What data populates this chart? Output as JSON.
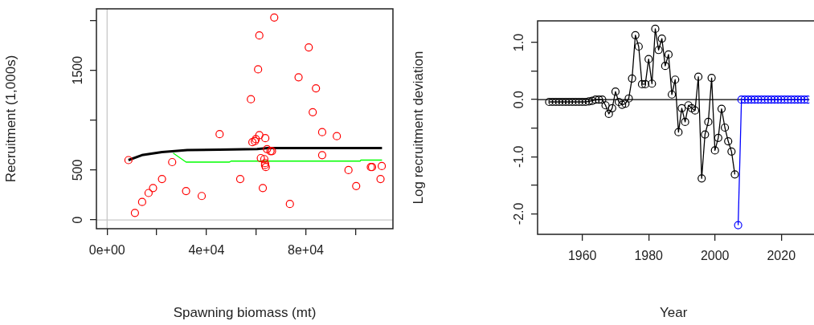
{
  "chart_data": [
    {
      "type": "scatter",
      "xlabel": "Spawning biomass (mt)",
      "ylabel": "Recruitment (1,000s)",
      "xlim": [
        -4300,
        115100
      ],
      "ylim": [
        -88,
        2117
      ],
      "xticks": [
        {
          "value": 0,
          "label": "0e+00"
        },
        {
          "value": 20000,
          "label": null
        },
        {
          "value": 40000,
          "label": "4e+04"
        },
        {
          "value": 60000,
          "label": null
        },
        {
          "value": 80000,
          "label": "8e+04"
        },
        {
          "value": 100000,
          "label": null
        }
      ],
      "yticks": [
        0,
        500,
        {
          "value": 1000,
          "label": null
        },
        1500,
        {
          "value": 2000,
          "label": null
        }
      ],
      "ref_lines": [
        {
          "axis": "x",
          "value": 0,
          "color": "#c8c8c8"
        },
        {
          "axis": "y",
          "value": 0,
          "color": "#c8c8c8"
        }
      ],
      "marker": "circle",
      "series": [
        {
          "color": "#ff0000",
          "x": [
            8600,
            11200,
            14100,
            16700,
            18500,
            22100,
            26200,
            31800,
            38100,
            45300,
            53600,
            57900,
            58500,
            59500,
            59900,
            60800,
            61300,
            61300,
            61900,
            62700,
            63300,
            63600,
            63600,
            63700,
            63900,
            67300,
            73600,
            77100,
            81200,
            82800,
            84100,
            86600,
            86600,
            92500,
            97200,
            100300,
            106200,
            106700,
            110100,
            110600
          ],
          "values": [
            600,
            70,
            180,
            270,
            320,
            410,
            580,
            290,
            240,
            860,
            410,
            1210,
            780,
            790,
            810,
            1510,
            1850,
            850,
            620,
            320,
            610,
            570,
            550,
            820,
            530,
            2030,
            160,
            1430,
            1730,
            1080,
            1320,
            880,
            650,
            840,
            500,
            340,
            530,
            530,
            410,
            540
          ]
        },
        {
          "color": "#ff0000",
          "x": [
            64400,
            65800,
            66400
          ],
          "values": [
            710,
            690,
            690
          ]
        },
        {
          "type": "line",
          "color": "#000000",
          "marker": "none",
          "x": [
            8600,
            14000,
            22100,
            32300,
            45300,
            60400,
            64700,
            110700
          ],
          "values": [
            600,
            650,
            680,
            700,
            705,
            710,
            720,
            720
          ]
        },
        {
          "type": "line",
          "color": "#00ff00",
          "marker": "none",
          "x": [
            26600,
            31800,
            49300,
            49900,
            101900,
            102200,
            110700
          ],
          "values": [
            670,
            580,
            580,
            590,
            590,
            600,
            600
          ]
        }
      ]
    },
    {
      "type": "line",
      "xlabel": "Year",
      "ylabel": "Log recruitment deviation",
      "xlim": [
        1946.5,
        2028.5
      ],
      "ylim": [
        -2.36,
        1.38
      ],
      "xticks": [
        1960,
        1980,
        2000,
        2020
      ],
      "yticks": [
        {
          "value": -2,
          "label": "-2.0"
        },
        {
          "value": -1.5,
          "label": null
        },
        {
          "value": -1,
          "label": "-1.0"
        },
        {
          "value": -0.5,
          "label": null
        },
        {
          "value": 0,
          "label": "0.0"
        },
        {
          "value": 0.5,
          "label": null
        },
        {
          "value": 1,
          "label": "1.0"
        }
      ],
      "ref_lines": [
        {
          "axis": "y",
          "value": 0,
          "color": "#000000"
        }
      ],
      "marker": "circle",
      "series": [
        {
          "color": "#000000",
          "x": [
            1950,
            1951,
            1952,
            1953,
            1954,
            1955,
            1956,
            1957,
            1958,
            1959,
            1960,
            1961,
            1962,
            1963,
            1964,
            1965,
            1966,
            1967,
            1968,
            1969,
            1970,
            1971,
            1972,
            1973,
            1974,
            1975,
            1976,
            1977,
            1978,
            1979,
            1980,
            1981,
            1982,
            1983,
            1984,
            1985,
            1986,
            1987,
            1988,
            1989,
            1990,
            1991,
            1992,
            1993,
            1994,
            1995,
            1996,
            1997,
            1998,
            1999,
            2000,
            2001,
            2002,
            2003,
            2004,
            2005,
            2006
          ],
          "values": [
            -0.04,
            -0.04,
            -0.04,
            -0.04,
            -0.04,
            -0.04,
            -0.04,
            -0.04,
            -0.04,
            -0.04,
            -0.04,
            -0.04,
            -0.03,
            -0.02,
            0,
            0,
            0,
            -0.1,
            -0.25,
            -0.15,
            0.14,
            -0.04,
            -0.09,
            -0.07,
            0.02,
            0.37,
            1.13,
            0.93,
            0.27,
            0.27,
            0.71,
            0.28,
            1.24,
            0.87,
            1.07,
            0.59,
            0.79,
            0.09,
            0.35,
            -0.57,
            -0.15,
            -0.39,
            -0.1,
            -0.15,
            -0.19,
            0.4,
            -1.38,
            -0.61,
            -0.39,
            0.38,
            -0.89,
            -0.67,
            -0.16,
            -0.49,
            -0.73,
            -0.91,
            -1.31
          ]
        },
        {
          "color": "#0000ff",
          "x": [
            2007,
            2008,
            2009,
            2010,
            2011,
            2012,
            2013,
            2014,
            2015,
            2016,
            2017,
            2018,
            2019,
            2020,
            2021,
            2022,
            2023,
            2024,
            2025,
            2026,
            2027,
            2028
          ],
          "values": [
            -2.2,
            0,
            0,
            0,
            0,
            0,
            0,
            0,
            0,
            0,
            0,
            0,
            0,
            0,
            0,
            0,
            0,
            0,
            0,
            0,
            0,
            0
          ]
        }
      ]
    }
  ]
}
